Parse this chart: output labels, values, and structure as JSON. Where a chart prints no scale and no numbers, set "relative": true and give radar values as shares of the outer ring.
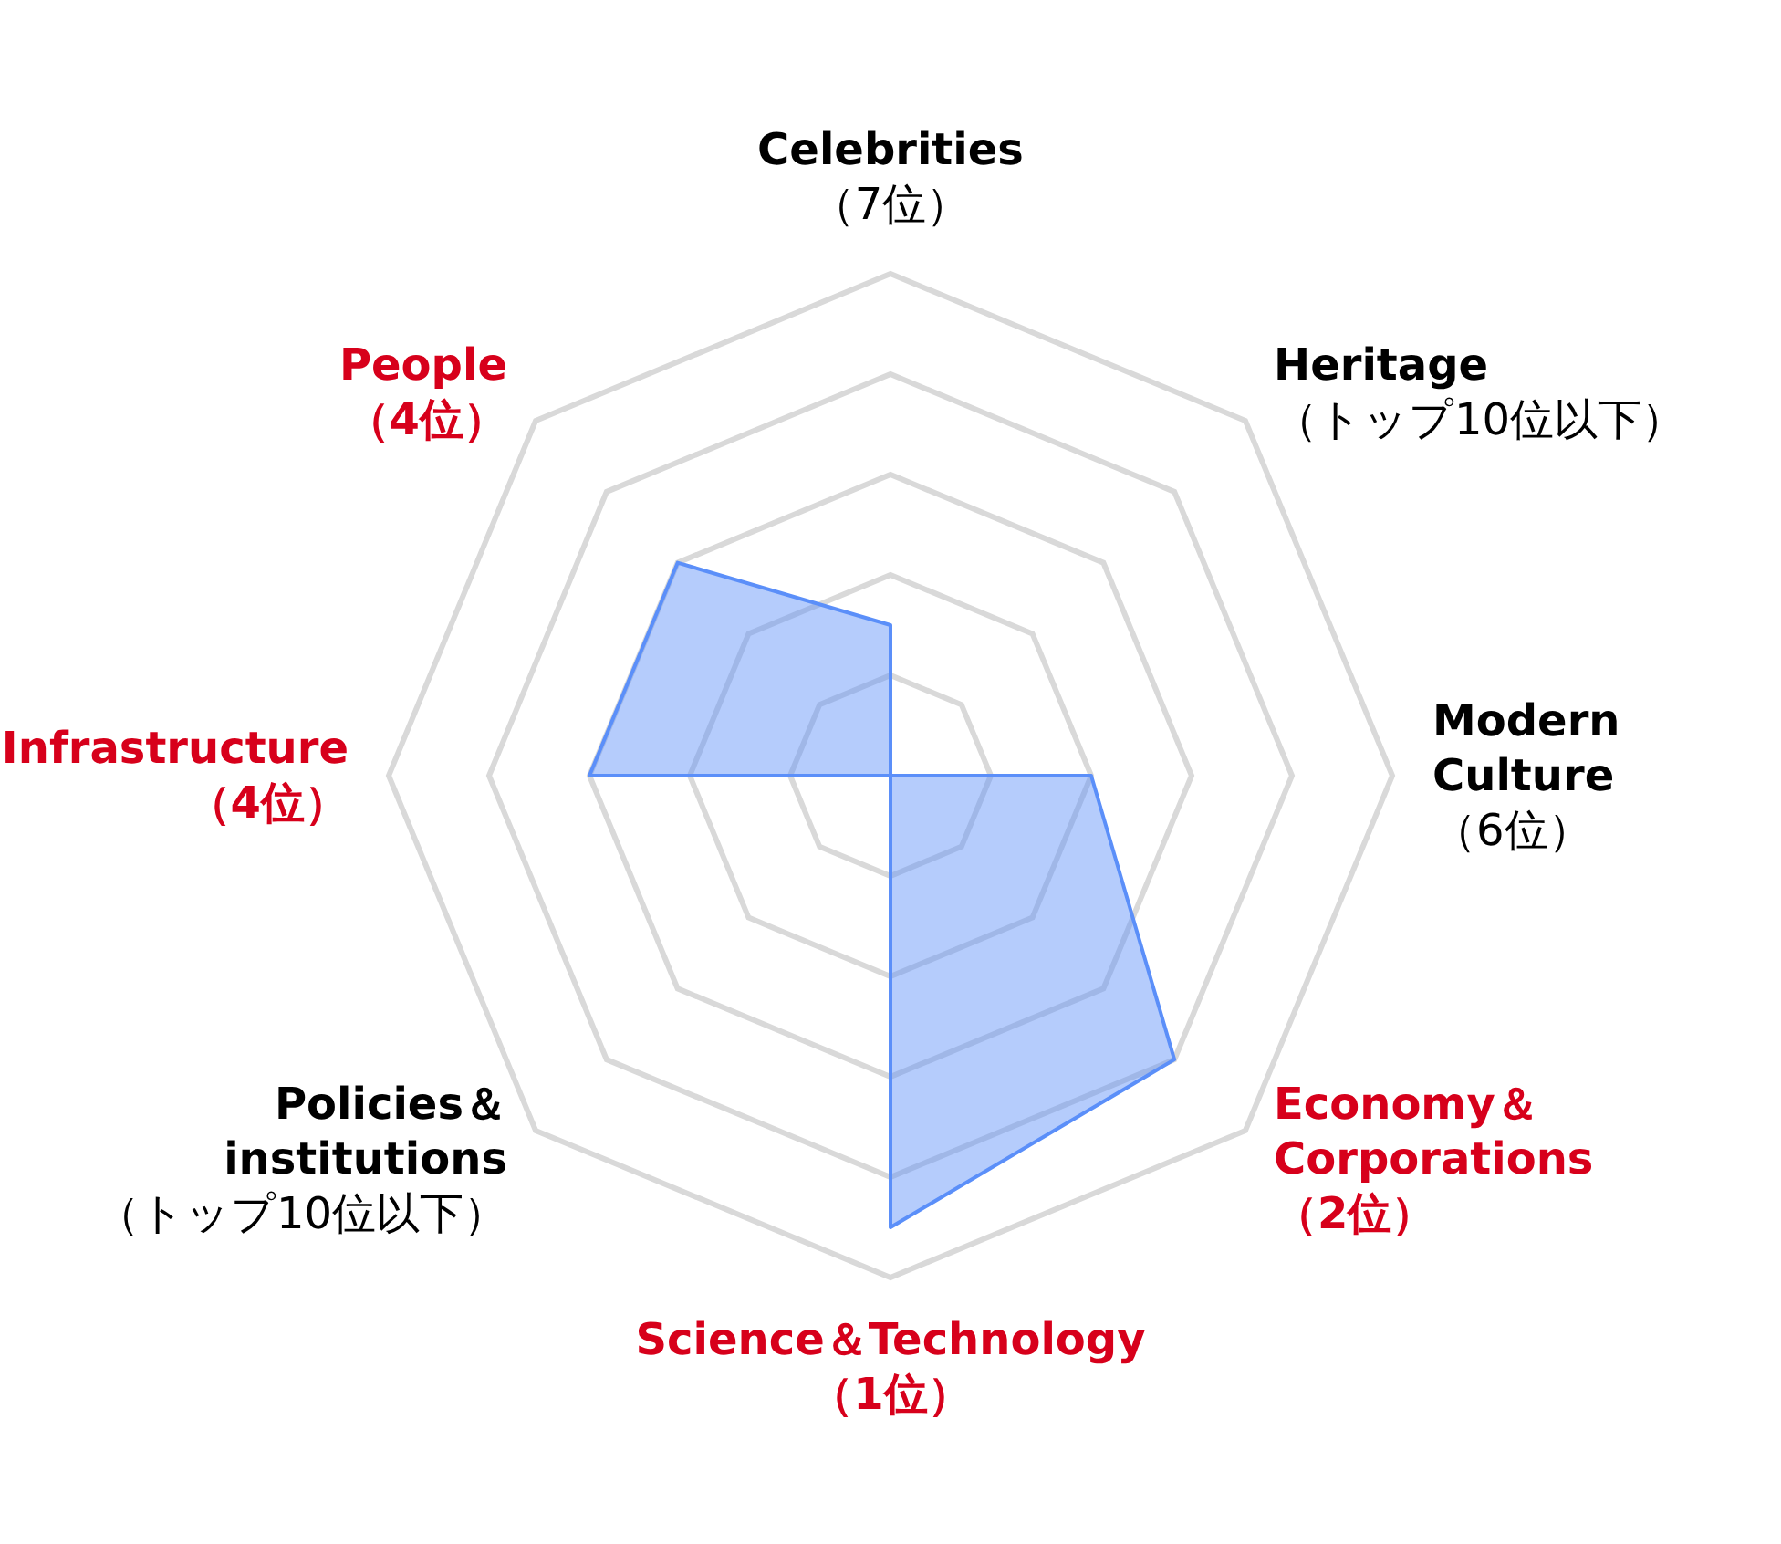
{
  "chart_data": {
    "type": "radar",
    "relative": true,
    "categories": [
      "Celebrities\n（7位）",
      "Heritage\n（トップ10位以下）",
      "Modern\nCulture\n（6位）",
      "Economy＆\nCorporations\n（2位）",
      "Science＆Technology\n（1位）",
      "Policies＆\ninstitutions\n（トップ10位以下）",
      "Infrastructure\n（4位）",
      "People\n（4位）"
    ],
    "colors": [
      "#000000",
      "#000000",
      "#000000",
      "#d7001b",
      "#d7001b",
      "#000000",
      "#d7001b",
      "#d7001b"
    ],
    "series": [
      {
        "color": "#5b8ff9",
        "values": [
          0.3,
          0,
          0.4,
          0.8,
          0.9,
          0,
          0.6,
          0.6
        ]
      }
    ],
    "grid": true
  }
}
